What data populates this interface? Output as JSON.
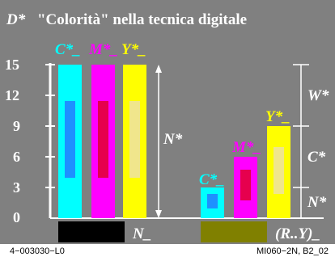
{
  "title": {
    "symbol": "D*",
    "text": "\"Colorità\" nella tecnica digitale"
  },
  "axis": {
    "ticks": [
      "0",
      "3",
      "6",
      "9",
      "12",
      "15"
    ]
  },
  "labels": {
    "c_top": "C*_",
    "m_top": "M*_",
    "y_top": "Y*_",
    "n_mid": "N*",
    "n_bottom": "N_",
    "c_right": "C*_",
    "m_right": "M*_",
    "y_right": "Y*_",
    "w_side": "W*",
    "c_side": "C*",
    "n_side": "N*",
    "ry": "(R..Y)_"
  },
  "colors": {
    "background": "#808080",
    "cyan": "#00ffff",
    "magenta": "#ff00ff",
    "yellow": "#ffff00",
    "cyan_inner": "#1e90ff",
    "magenta_inner": "#e6004e",
    "yellow_inner": "#f0e68c",
    "black_patch": "#000000",
    "olive_patch": "#808000"
  },
  "footer": {
    "left": "4−003030−L0",
    "right": "MI060−2N, B2_02"
  }
}
